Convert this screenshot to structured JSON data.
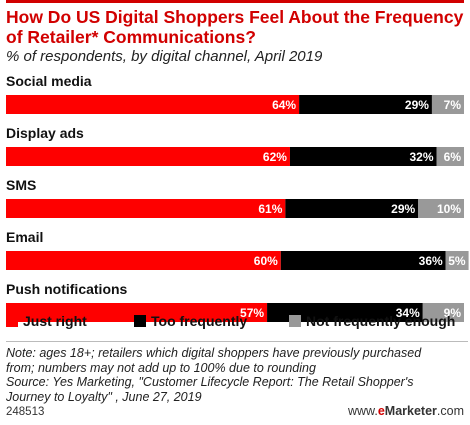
{
  "header": {
    "title": "How Do US Digital Shoppers Feel About the Frequency of Retailer* Communications?",
    "subtitle": "% of respondents, by digital channel, April 2019"
  },
  "colors": {
    "just_right": "#fe0000",
    "too_frequently": "#000000",
    "not_frequently_enough": "#999999",
    "accent": "#d10000"
  },
  "chart_data": {
    "type": "bar",
    "orientation": "horizontal",
    "stacked": true,
    "categories": [
      "Social media",
      "Display ads",
      "SMS",
      "Email",
      "Push notifications"
    ],
    "series": [
      {
        "name": "Just right",
        "values": [
          64,
          62,
          61,
          60,
          57
        ],
        "labels": [
          "64%",
          "62%",
          "61%",
          "60%",
          "57%"
        ]
      },
      {
        "name": "Too frequently",
        "values": [
          29,
          32,
          29,
          36,
          34
        ],
        "labels": [
          "29%",
          "32%",
          "29%",
          "36%",
          "34%"
        ]
      },
      {
        "name": "Not frequently enough",
        "values": [
          7,
          6,
          10,
          5,
          9
        ],
        "labels": [
          "7%",
          "6%",
          "10%",
          "5%",
          "9%"
        ]
      }
    ],
    "xlim": [
      0,
      100
    ],
    "legend_position": "bottom",
    "grid": false
  },
  "footer": {
    "note_line1": "Note: ages 18+; retailers which digital shoppers have previously purchased",
    "note_line2": "from; numbers may not add up to 100% due to rounding",
    "source_line1": "Source: Yes Marketing, \"Customer Lifecycle Report: The Retail Shopper's",
    "source_line2": "Journey to Loyalty\" , June 27, 2019",
    "chart_id": "248513",
    "brand_prefix": "www.",
    "brand_e": "e",
    "brand_name": "Marketer",
    "brand_suffix": ".com"
  }
}
